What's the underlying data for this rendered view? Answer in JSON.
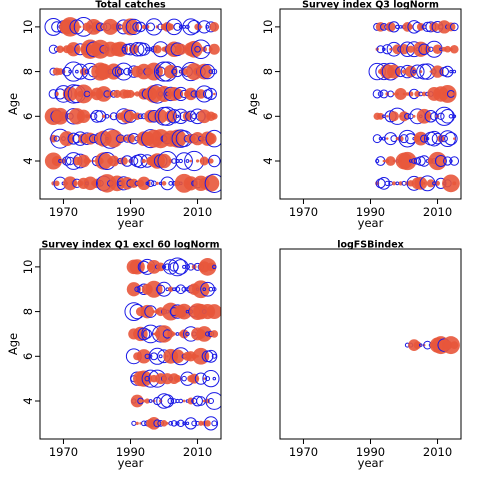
{
  "figure": {
    "colors": {
      "positive": "#E8573B",
      "negative": "#1A1AE6",
      "axis": "#000000"
    },
    "panel_template": {
      "xlabel": "year",
      "ylabel": "Age",
      "x_ticks": [
        1970,
        1990,
        2010
      ],
      "y_ticks": [
        4,
        6,
        8,
        10
      ],
      "xlim": [
        1963,
        2017
      ],
      "ylim": [
        2.3,
        10.8
      ]
    }
  },
  "chart_data": [
    {
      "type": "scatter",
      "title": "Total catches",
      "xlabel": "year",
      "ylabel": "Age",
      "xlim": [
        1963,
        2017
      ],
      "ylim": [
        2.3,
        10.8
      ],
      "x_ticks": [
        1970,
        1990,
        2010
      ],
      "y_ticks": [
        4,
        6,
        8,
        10
      ],
      "show_ylabel": true,
      "show_yticks": true,
      "x_range": [
        1967,
        2015
      ],
      "ages": [
        3,
        4,
        5,
        6,
        7,
        8,
        9,
        10
      ],
      "seed": 11,
      "style": "dense"
    },
    {
      "type": "scatter",
      "title": "Survey index Q3 logNorm",
      "xlabel": "year",
      "ylabel": "Age",
      "xlim": [
        1963,
        2017
      ],
      "ylim": [
        2.3,
        10.8
      ],
      "x_ticks": [
        1970,
        1990,
        2010
      ],
      "y_ticks": [
        4,
        6,
        8,
        10
      ],
      "show_ylabel": true,
      "show_yticks": true,
      "x_range": [
        1992,
        2015
      ],
      "ages": [
        3,
        4,
        5,
        6,
        7,
        8,
        9,
        10
      ],
      "seed": 23,
      "style": "annual"
    },
    {
      "type": "scatter",
      "title": "Survey index Q1 excl 60 logNorm",
      "xlabel": "year",
      "ylabel": "Age",
      "xlim": [
        1963,
        2017
      ],
      "ylim": [
        2.3,
        10.8
      ],
      "x_ticks": [
        1970,
        1990,
        2010
      ],
      "y_ticks": [
        4,
        6,
        8,
        10
      ],
      "show_ylabel": true,
      "show_yticks": true,
      "x_range": [
        1991,
        2015
      ],
      "ages": [
        3,
        4,
        5,
        6,
        7,
        8,
        9,
        10
      ],
      "seed": 37,
      "style": "annual"
    },
    {
      "type": "scatter",
      "title": "logFSBindex",
      "xlabel": "year",
      "ylabel": "",
      "xlim": [
        1963,
        2017
      ],
      "ylim": [
        2.3,
        10.8
      ],
      "x_ticks": [
        1970,
        1990,
        2010
      ],
      "y_ticks": [],
      "show_ylabel": false,
      "show_yticks": false,
      "x_range": [
        2001,
        2015
      ],
      "ages": [
        6.5
      ],
      "seed": 5,
      "style": "annual"
    }
  ]
}
